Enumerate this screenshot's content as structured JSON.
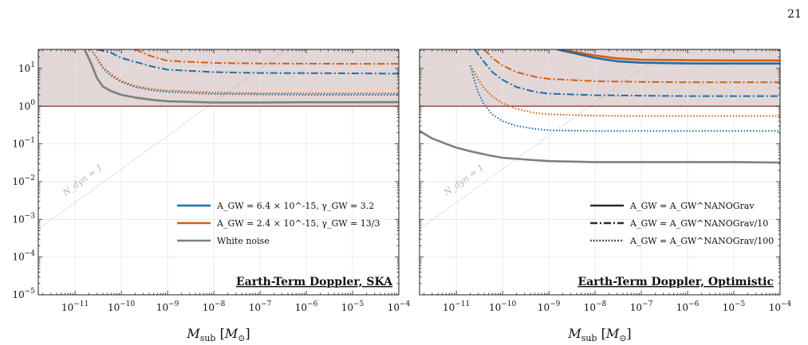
{
  "page_number": "21",
  "colors": {
    "blue": "#1f6fa8",
    "orange": "#d4600b",
    "gray": "#7f7f7f",
    "excluded_fill": "#e3d6d7",
    "threshold_line": "#8b2e2e",
    "grid": "#e6e6e6"
  },
  "chart_data": [
    {
      "type": "line",
      "title": "Earth-Term Doppler, SKA",
      "xlabel": "M_sub [M_⊙]",
      "ylabel": "",
      "x_scale": "log",
      "y_scale": "log",
      "xlim": [
        1.6e-12,
        0.0001
      ],
      "ylim": [
        1e-05,
        32
      ],
      "grid": true,
      "legend_position": "lower-right",
      "shaded_region": {
        "y_from": 1,
        "y_to": 32
      },
      "threshold_line": 1,
      "x_ticks": [
        "10^-11",
        "10^-10",
        "10^-9",
        "10^-8",
        "10^-7",
        "10^-6",
        "10^-5",
        "10^-4"
      ],
      "y_ticks": [
        "10^-5",
        "10^-4",
        "10^-3",
        "10^-2",
        "10^-1",
        "10^0",
        "10^1"
      ],
      "annotation": "N_dyn = 1",
      "reference_line": {
        "x": [
          1.6e-12,
          0.0001
        ],
        "y": [
          0.00055,
          4500
        ]
      },
      "legend": [
        {
          "label": "A_GW = 6.4 × 10^-15, γ_GW = 3.2",
          "color": "blue",
          "style": "solid"
        },
        {
          "label": "A_GW = 2.4 × 10^-15, γ_GW = 13/3",
          "color": "orange",
          "style": "solid"
        },
        {
          "label": "White noise",
          "color": "gray",
          "style": "solid"
        }
      ],
      "series": [
        {
          "color": "blue",
          "style": "dashdot",
          "x": [
            3e-11,
            6e-11,
            1e-10,
            2e-10,
            5e-10,
            1e-09,
            1e-08,
            1e-07,
            1e-06,
            1e-05,
            0.0001
          ],
          "y": [
            32,
            26,
            19,
            15,
            11,
            9.3,
            8.0,
            7.6,
            7.5,
            7.4,
            7.3
          ]
        },
        {
          "color": "orange",
          "style": "dashdot",
          "x": [
            2e-10,
            4e-10,
            1e-09,
            1e-08,
            1e-07,
            1e-06,
            1e-05,
            0.0001
          ],
          "y": [
            32,
            22,
            16,
            14,
            13.5,
            13.4,
            13.3,
            13.3
          ]
        },
        {
          "color": "blue",
          "style": "dotted",
          "x": [
            2.2e-11,
            3e-11,
            4e-11,
            6e-11,
            1e-10,
            2e-10,
            5e-10,
            1e-09,
            1e-08,
            1e-07,
            1e-06,
            1e-05,
            0.0001
          ],
          "y": [
            32,
            18,
            10,
            6.5,
            4.4,
            3.2,
            2.6,
            2.4,
            2.1,
            2.05,
            2.0,
            2.0,
            2.0
          ]
        },
        {
          "color": "orange",
          "style": "dotted",
          "x": [
            2.2e-11,
            3e-11,
            4e-11,
            6e-11,
            1e-10,
            2e-10,
            5e-10,
            1e-09,
            1e-08,
            1e-07,
            1e-06,
            1e-05,
            0.0001
          ],
          "y": [
            32,
            19,
            11,
            7.0,
            4.7,
            3.4,
            2.8,
            2.6,
            2.3,
            2.2,
            2.2,
            2.2,
            2.2
          ]
        },
        {
          "color": "gray",
          "style": "solid",
          "x": [
            1.6e-11,
            2.2e-11,
            3e-11,
            4e-11,
            6e-11,
            1e-10,
            2e-10,
            5e-10,
            1e-09,
            1e-08,
            1e-07,
            1e-06,
            1e-05,
            0.0001
          ],
          "y": [
            32,
            14,
            5.5,
            3.3,
            2.5,
            2.0,
            1.7,
            1.45,
            1.35,
            1.25,
            1.25,
            1.27,
            1.27,
            1.28
          ]
        }
      ]
    },
    {
      "type": "line",
      "title": "Earth-Term Doppler, Optimistic",
      "xlabel": "M_sub [M_⊙]",
      "ylabel": "",
      "x_scale": "log",
      "y_scale": "log",
      "xlim": [
        1.6e-12,
        0.0001
      ],
      "ylim": [
        1e-05,
        32
      ],
      "grid": true,
      "legend_position": "lower-right",
      "shaded_region": {
        "y_from": 1,
        "y_to": 32
      },
      "threshold_line": 1,
      "x_ticks": [
        "10^-11",
        "10^-10",
        "10^-9",
        "10^-8",
        "10^-7",
        "10^-6",
        "10^-5",
        "10^-4"
      ],
      "y_ticks": [],
      "annotation": "N_dyn = 1",
      "reference_line": {
        "x": [
          1.6e-12,
          0.0001
        ],
        "y": [
          0.00055,
          4500
        ]
      },
      "legend": [
        {
          "label": "A_GW = A_GW^NANOGrav",
          "color": "black",
          "style": "solid"
        },
        {
          "label": "A_GW = A_GW^NANOGrav/10",
          "color": "black",
          "style": "dashdot"
        },
        {
          "label": "A_GW = A_GW^NANOGrav/100",
          "color": "black",
          "style": "dotted"
        }
      ],
      "series": [
        {
          "color": "orange",
          "style": "solid",
          "x": [
            1.8e-09,
            1e-08,
            3e-08,
            1e-07,
            1e-06,
            1e-05,
            0.0001
          ],
          "y": [
            32,
            22,
            18.5,
            17,
            16.5,
            16.3,
            16.3
          ]
        },
        {
          "color": "blue",
          "style": "solid",
          "x": [
            1.5e-09,
            1e-08,
            3e-08,
            1e-07,
            1e-06,
            1e-05,
            0.0001
          ],
          "y": [
            32,
            19,
            15.5,
            14.2,
            13.6,
            13.5,
            13.5
          ]
        },
        {
          "color": "orange",
          "style": "dashdot",
          "x": [
            4e-11,
            6e-11,
            1e-10,
            2e-10,
            5e-10,
            1e-09,
            1e-08,
            1e-07,
            1e-06,
            1e-05,
            0.0001
          ],
          "y": [
            32,
            19,
            12,
            8.0,
            6.0,
            5.3,
            4.6,
            4.4,
            4.3,
            4.3,
            4.3
          ]
        },
        {
          "color": "blue",
          "style": "dashdot",
          "x": [
            2.5e-11,
            3.5e-11,
            6e-11,
            1e-10,
            2e-10,
            5e-10,
            1e-09,
            1e-08,
            1e-07,
            1e-06,
            1e-05,
            0.0001
          ],
          "y": [
            32,
            18,
            8.0,
            5.0,
            3.2,
            2.4,
            2.15,
            1.95,
            1.9,
            1.85,
            1.85,
            1.85
          ]
        },
        {
          "color": "orange",
          "style": "dotted",
          "x": [
            2.2e-11,
            3e-11,
            4e-11,
            6e-11,
            1e-10,
            2e-10,
            5e-10,
            1e-09,
            1e-08,
            1e-07,
            1e-06,
            1e-05,
            0.0001
          ],
          "y": [
            10,
            5.0,
            3.0,
            1.8,
            1.2,
            0.85,
            0.66,
            0.61,
            0.56,
            0.55,
            0.55,
            0.55,
            0.55
          ]
        },
        {
          "color": "blue",
          "style": "dotted",
          "x": [
            2e-11,
            2.5e-11,
            3e-11,
            4e-11,
            6e-11,
            1e-10,
            2e-10,
            5e-10,
            1e-09,
            1e-08,
            1e-07,
            1e-06,
            1e-05,
            0.0001
          ],
          "y": [
            12,
            4.5,
            2.2,
            1.1,
            0.6,
            0.4,
            0.3,
            0.25,
            0.23,
            0.22,
            0.22,
            0.22,
            0.22,
            0.22
          ]
        },
        {
          "color": "gray",
          "style": "solid",
          "x": [
            1.6e-12,
            3e-12,
            6e-12,
            1e-11,
            2e-11,
            5e-11,
            1e-10,
            5e-10,
            1e-09,
            1e-08,
            1e-07,
            1e-06,
            1e-05,
            0.0001
          ],
          "y": [
            0.22,
            0.14,
            0.1,
            0.08,
            0.064,
            0.05,
            0.043,
            0.037,
            0.035,
            0.033,
            0.033,
            0.033,
            0.033,
            0.032
          ]
        }
      ]
    }
  ]
}
